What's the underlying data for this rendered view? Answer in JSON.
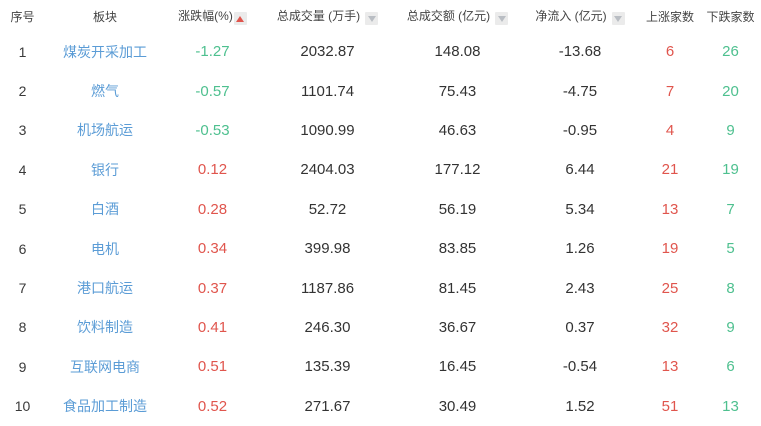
{
  "colors": {
    "link_blue": "#5b9cd6",
    "up_red": "#e0554d",
    "down_green": "#4ec08f",
    "text_dark": "#333333",
    "header_text": "#444444",
    "sort_box_bg": "#ebebeb",
    "sort_inactive": "#b9bdc3"
  },
  "table": {
    "columns": [
      {
        "key": "index",
        "label": "序号",
        "sort": "none"
      },
      {
        "key": "sector",
        "label": "板块",
        "sort": "none"
      },
      {
        "key": "change_pct",
        "label": "涨跌幅(%)",
        "sort": "ascending-active"
      },
      {
        "key": "volume",
        "label": "总成交量 (万手)",
        "sort": "inactive"
      },
      {
        "key": "amount",
        "label": "总成交额 (亿元)",
        "sort": "inactive"
      },
      {
        "key": "net_inflow",
        "label": "净流入 (亿元)",
        "sort": "inactive"
      },
      {
        "key": "up_count",
        "label": "上涨家数",
        "sort": "none"
      },
      {
        "key": "down_count",
        "label": "下跌家数",
        "sort": "none"
      }
    ],
    "rows": [
      {
        "index": "1",
        "sector": "煤炭开采加工",
        "change_pct": "-1.27",
        "volume": "2032.87",
        "amount": "148.08",
        "net_inflow": "-13.68",
        "up_count": "6",
        "down_count": "26"
      },
      {
        "index": "2",
        "sector": "燃气",
        "change_pct": "-0.57",
        "volume": "1101.74",
        "amount": "75.43",
        "net_inflow": "-4.75",
        "up_count": "7",
        "down_count": "20"
      },
      {
        "index": "3",
        "sector": "机场航运",
        "change_pct": "-0.53",
        "volume": "1090.99",
        "amount": "46.63",
        "net_inflow": "-0.95",
        "up_count": "4",
        "down_count": "9"
      },
      {
        "index": "4",
        "sector": "银行",
        "change_pct": "0.12",
        "volume": "2404.03",
        "amount": "177.12",
        "net_inflow": "6.44",
        "up_count": "21",
        "down_count": "19"
      },
      {
        "index": "5",
        "sector": "白酒",
        "change_pct": "0.28",
        "volume": "52.72",
        "amount": "56.19",
        "net_inflow": "5.34",
        "up_count": "13",
        "down_count": "7"
      },
      {
        "index": "6",
        "sector": "电机",
        "change_pct": "0.34",
        "volume": "399.98",
        "amount": "83.85",
        "net_inflow": "1.26",
        "up_count": "19",
        "down_count": "5"
      },
      {
        "index": "7",
        "sector": "港口航运",
        "change_pct": "0.37",
        "volume": "1187.86",
        "amount": "81.45",
        "net_inflow": "2.43",
        "up_count": "25",
        "down_count": "8"
      },
      {
        "index": "8",
        "sector": "饮料制造",
        "change_pct": "0.41",
        "volume": "246.30",
        "amount": "36.67",
        "net_inflow": "0.37",
        "up_count": "32",
        "down_count": "9"
      },
      {
        "index": "9",
        "sector": "互联网电商",
        "change_pct": "0.51",
        "volume": "135.39",
        "amount": "16.45",
        "net_inflow": "-0.54",
        "up_count": "13",
        "down_count": "6"
      },
      {
        "index": "10",
        "sector": "食品加工制造",
        "change_pct": "0.52",
        "volume": "271.67",
        "amount": "30.49",
        "net_inflow": "1.52",
        "up_count": "51",
        "down_count": "13"
      }
    ]
  }
}
